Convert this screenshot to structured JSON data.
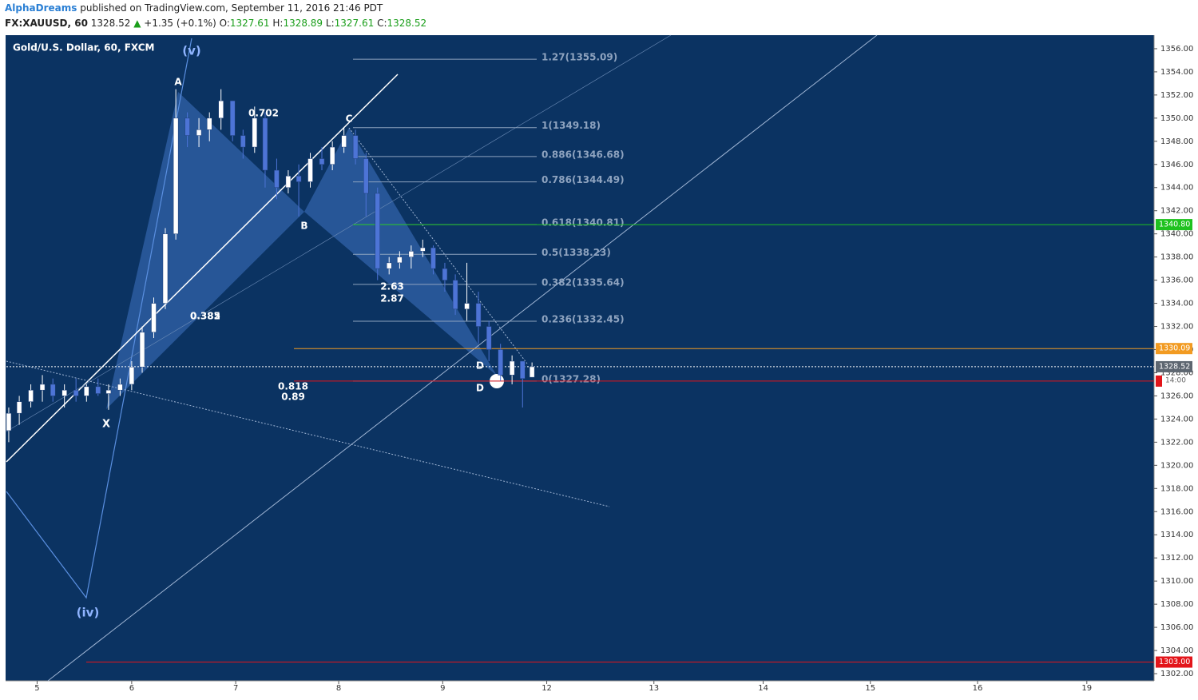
{
  "chart_data": {
    "type": "candlestick",
    "publisher": "AlphaDreams",
    "published_text": "published on TradingView.com, September 11, 2016 21:46 PDT",
    "symbol": "FX:XAUUSD, 60",
    "last": "1328.52",
    "change": "+1.35 (+0.1%)",
    "ohlc_header": [
      {
        "label": "O:",
        "value": "1327.61"
      },
      {
        "label": "H:",
        "value": "1328.89"
      },
      {
        "label": "L:",
        "value": "1327.61"
      },
      {
        "label": "C:",
        "value": "1328.52"
      }
    ],
    "title": "Gold/U.S. Dollar, 60, FXCM",
    "up_color": "#ffffff",
    "down_color": "#4d74d6",
    "x": [
      -0.27,
      -0.17,
      -0.06,
      0.05,
      0.15,
      0.26,
      0.37,
      0.47,
      0.58,
      0.68,
      0.79,
      0.9,
      1.0,
      1.11,
      1.22,
      1.32,
      1.43,
      1.54,
      1.64,
      1.75,
      1.86,
      1.96,
      2.07,
      2.17,
      2.28,
      2.39,
      2.49,
      2.6,
      2.71,
      2.81,
      2.92,
      3.03,
      3.13,
      3.24,
      3.35,
      3.45,
      3.56,
      3.67,
      3.77,
      3.88,
      3.98,
      4.09,
      4.2,
      4.3,
      4.41,
      4.52,
      4.62,
      4.71
    ],
    "open": [
      1323.0,
      1324.5,
      1325.5,
      1326.5,
      1327.0,
      1326.0,
      1326.5,
      1326.0,
      1326.8,
      1326.2,
      1326.5,
      1327.0,
      1328.5,
      1331.5,
      1334.0,
      1340.0,
      1350.0,
      1348.5,
      1349.0,
      1350.0,
      1351.5,
      1348.5,
      1347.5,
      1350.0,
      1345.5,
      1344.0,
      1345.0,
      1344.5,
      1346.5,
      1346.0,
      1347.5,
      1348.5,
      1346.5,
      1343.5,
      1337.0,
      1337.5,
      1338.0,
      1338.5,
      1338.8,
      1337.0,
      1336.0,
      1333.5,
      1334.0,
      1332.0,
      1330.0,
      1327.8,
      1329.0,
      1327.61
    ],
    "high": [
      1325.0,
      1326.0,
      1327.0,
      1327.8,
      1327.5,
      1327.0,
      1327.5,
      1327.0,
      1327.5,
      1327.0,
      1327.5,
      1329.0,
      1332.0,
      1334.5,
      1340.5,
      1352.5,
      1350.5,
      1350.0,
      1350.5,
      1352.5,
      1351.5,
      1349.0,
      1351.0,
      1350.5,
      1346.5,
      1345.5,
      1346.0,
      1347.0,
      1347.5,
      1348.0,
      1349.2,
      1349.0,
      1347.0,
      1344.0,
      1338.0,
      1338.5,
      1339.0,
      1339.5,
      1339.0,
      1337.5,
      1336.5,
      1337.5,
      1335.0,
      1332.5,
      1330.5,
      1329.5,
      1329.0,
      1328.89
    ],
    "low": [
      1322.0,
      1323.5,
      1325.0,
      1325.5,
      1325.5,
      1325.0,
      1325.5,
      1325.5,
      1326.0,
      1324.8,
      1326.0,
      1326.5,
      1328.0,
      1331.0,
      1333.5,
      1339.5,
      1347.5,
      1347.5,
      1348.0,
      1349.0,
      1348.0,
      1346.5,
      1347.0,
      1344.0,
      1343.0,
      1343.5,
      1341.5,
      1344.0,
      1345.5,
      1345.5,
      1347.0,
      1346.0,
      1341.5,
      1336.0,
      1336.5,
      1337.0,
      1337.0,
      1338.0,
      1336.5,
      1335.0,
      1333.0,
      1332.5,
      1330.5,
      1329.0,
      1327.3,
      1327.0,
      1325.0,
      1327.61
    ],
    "close": [
      1324.5,
      1325.5,
      1326.5,
      1327.0,
      1326.0,
      1326.5,
      1326.0,
      1326.8,
      1326.2,
      1326.5,
      1327.0,
      1328.5,
      1331.5,
      1334.0,
      1340.0,
      1350.0,
      1348.5,
      1349.0,
      1350.0,
      1351.5,
      1348.5,
      1347.5,
      1350.0,
      1345.5,
      1344.0,
      1345.0,
      1344.5,
      1346.5,
      1346.0,
      1347.5,
      1348.5,
      1346.5,
      1343.5,
      1337.0,
      1337.5,
      1338.0,
      1338.5,
      1338.8,
      1337.0,
      1336.0,
      1333.5,
      1334.0,
      1332.0,
      1330.0,
      1327.8,
      1329.0,
      1327.5,
      1328.52
    ],
    "xlim": [
      -0.3,
      10.63
    ],
    "xticks": [
      {
        "value": 0,
        "label": "5"
      },
      {
        "value": 0.9,
        "label": "6"
      },
      {
        "value": 1.89,
        "label": "7"
      },
      {
        "value": 2.87,
        "label": "8"
      },
      {
        "value": 3.86,
        "label": "9"
      },
      {
        "value": 4.85,
        "label": "12"
      },
      {
        "value": 5.87,
        "label": "13"
      },
      {
        "value": 6.91,
        "label": "14"
      },
      {
        "value": 7.93,
        "label": "15"
      },
      {
        "value": 8.95,
        "label": "16"
      },
      {
        "value": 9.99,
        "label": "19"
      }
    ],
    "ylim": [
      1301.38,
      1357.17
    ],
    "yticks": [
      {
        "value": 1302,
        "label": "1302.00"
      },
      {
        "value": 1304,
        "label": "1304.00"
      },
      {
        "value": 1306,
        "label": "1306.00"
      },
      {
        "value": 1308,
        "label": "1308.00"
      },
      {
        "value": 1310,
        "label": "1310.00"
      },
      {
        "value": 1312,
        "label": "1312.00"
      },
      {
        "value": 1314,
        "label": "1314.00"
      },
      {
        "value": 1316,
        "label": "1316.00"
      },
      {
        "value": 1318,
        "label": "1318.00"
      },
      {
        "value": 1320,
        "label": "1320.00"
      },
      {
        "value": 1322,
        "label": "1322.00"
      },
      {
        "value": 1324,
        "label": "1324.00"
      },
      {
        "value": 1326,
        "label": "1326.00"
      },
      {
        "value": 1328,
        "label": "1328.00"
      },
      {
        "value": 1330,
        "label": "1330.00"
      },
      {
        "value": 1332,
        "label": "1332.00"
      },
      {
        "value": 1334,
        "label": "1334.00"
      },
      {
        "value": 1336,
        "label": "1336.00"
      },
      {
        "value": 1338,
        "label": "1338.00"
      },
      {
        "value": 1340,
        "label": "1340.00"
      },
      {
        "value": 1342,
        "label": "1342.00"
      },
      {
        "value": 1344,
        "label": "1344.00"
      },
      {
        "value": 1346,
        "label": "1346.00"
      },
      {
        "value": 1348,
        "label": "1348.00"
      },
      {
        "value": 1350,
        "label": "1350.00"
      },
      {
        "value": 1352,
        "label": "1352.00"
      },
      {
        "value": 1354,
        "label": "1354.00"
      },
      {
        "value": 1356,
        "label": "1356.00"
      }
    ],
    "fib_levels": [
      {
        "label": "1.27(1355.09)",
        "value": 1355.09
      },
      {
        "label": "1(1349.18)",
        "value": 1349.18
      },
      {
        "label": "0.886(1346.68)",
        "value": 1346.68
      },
      {
        "label": "0.786(1344.49)",
        "value": 1344.49
      },
      {
        "label": "0.618(1340.81)",
        "value": 1340.81
      },
      {
        "label": "0.5(1338.23)",
        "value": 1338.23
      },
      {
        "label": "0.382(1335.64)",
        "value": 1335.64
      },
      {
        "label": "0.236(1332.45)",
        "value": 1332.45
      },
      {
        "label": "0(1327.28)",
        "value": 1327.28
      }
    ],
    "price_levels": [
      {
        "label": "1340.80",
        "value": 1340.8,
        "color": "#1fc21f"
      },
      {
        "label": "1330.09",
        "value": 1330.09,
        "color": "#f29b22"
      },
      {
        "label": "1328.52",
        "value": 1328.52,
        "color": "#5d6670"
      },
      {
        "label": "1303.00",
        "value": 1303.0,
        "color": "#e3151a"
      }
    ],
    "countdown": "14:00",
    "annotations": [
      "(v)",
      "(iv)",
      "A",
      "B",
      "C",
      "D",
      "D",
      "X",
      "0.382",
      "0.385",
      "0.702",
      "2.63",
      "2.87",
      "0.818",
      "0.89"
    ]
  }
}
